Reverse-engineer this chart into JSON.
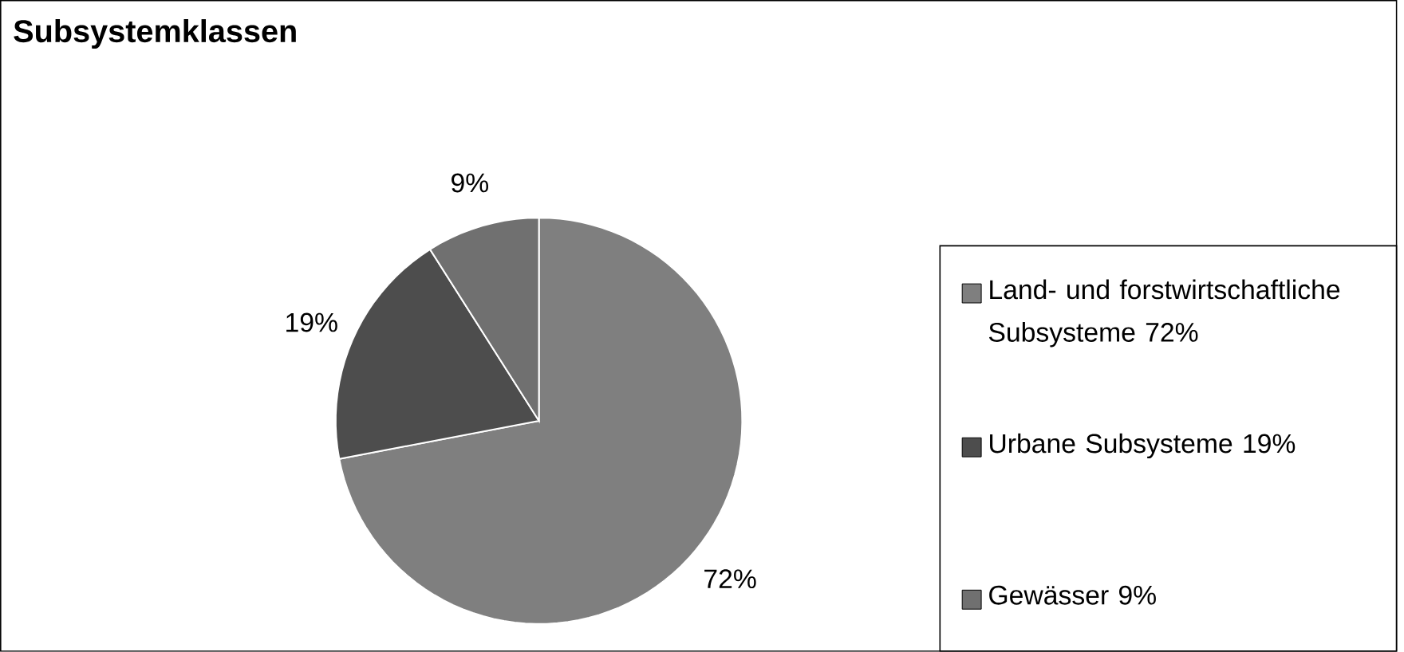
{
  "chart_data": {
    "type": "pie",
    "title": "Subsystemklassen",
    "categories": [
      "Land- und forstwirtschaftliche Subsysteme 72%",
      "Urbane Subsysteme 19%",
      "Gewässer 9%"
    ],
    "values": [
      72,
      19,
      9
    ],
    "colors": [
      "#7f7f7f",
      "#4d4d4d",
      "#707070"
    ],
    "value_labels": [
      "72%",
      "19%",
      "9%"
    ],
    "legend": "right"
  }
}
